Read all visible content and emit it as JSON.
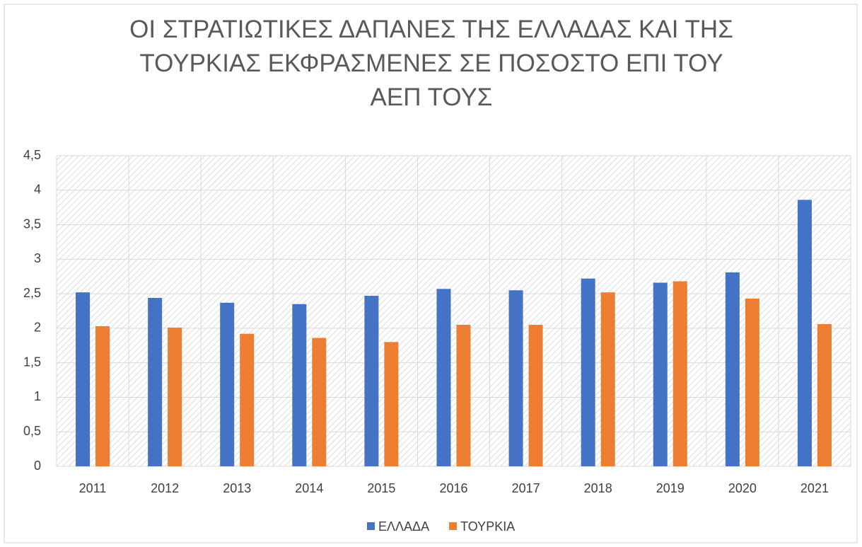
{
  "chart_data": {
    "type": "bar",
    "title": "ΟΙ ΣΤΡΑΤΙΩΤΙΚΕΣ ΔΑΠΑΝΕΣ ΤΗΣ ΕΛΛΑΔΑΣ ΚΑΙ ΤΗΣ ΤΟΥΡΚΙΑΣ ΕΚΦΡΑΣΜΕΝΕΣ ΣΕ ΠΟΣΟΣΤΟ ΕΠΙ ΤΟΥ ΑΕΠ ΤΟΥΣ",
    "categories": [
      "2011",
      "2012",
      "2013",
      "2014",
      "2015",
      "2016",
      "2017",
      "2018",
      "2019",
      "2020",
      "2021"
    ],
    "series": [
      {
        "name": "ΕΛΛΑΔΑ",
        "color": "#4472c4",
        "values": [
          2.52,
          2.44,
          2.37,
          2.35,
          2.47,
          2.57,
          2.55,
          2.72,
          2.66,
          2.81,
          3.86
        ]
      },
      {
        "name": "ΤΟΥΡΚΙΑ",
        "color": "#ed7d31",
        "values": [
          2.03,
          2.01,
          1.92,
          1.86,
          1.8,
          2.05,
          2.05,
          2.52,
          2.68,
          2.43,
          2.06
        ]
      }
    ],
    "ylim": [
      0,
      4.5
    ],
    "yticks": [
      0,
      {
        "value": 0.5,
        "label": "0,5"
      },
      1,
      {
        "value": 1.5,
        "label": "1,5"
      },
      2,
      {
        "value": 2.5,
        "label": "2,5"
      },
      3,
      {
        "value": 3.5,
        "label": "3,5"
      },
      4,
      {
        "value": 4.5,
        "label": "4,5"
      }
    ],
    "grid": true,
    "legend": "bottom"
  }
}
